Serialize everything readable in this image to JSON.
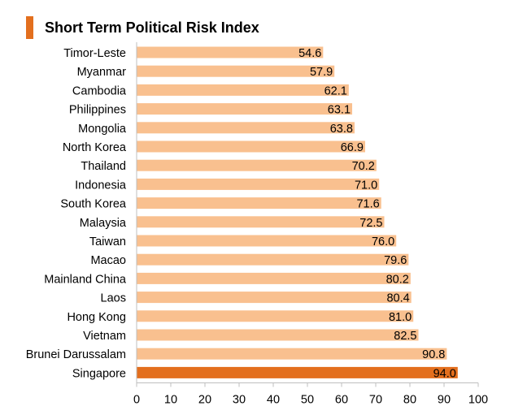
{
  "chart_data": {
    "type": "bar",
    "orientation": "horizontal",
    "title": "Short Term Political Risk Index",
    "categories": [
      "Timor-Leste",
      "Myanmar",
      "Cambodia",
      "Philippines",
      "Mongolia",
      "North Korea",
      "Thailand",
      "Indonesia",
      "South Korea",
      "Malaysia",
      "Taiwan",
      "Macao",
      "Mainland China",
      "Laos",
      "Hong Kong",
      "Vietnam",
      "Brunei Darussalam",
      "Singapore"
    ],
    "values": [
      54.6,
      57.9,
      62.1,
      63.1,
      63.8,
      66.9,
      70.2,
      71.0,
      71.6,
      72.5,
      76.0,
      79.6,
      80.2,
      80.4,
      81.0,
      82.5,
      90.8,
      94.0
    ],
    "value_labels": [
      "54.6",
      "57.9",
      "62.1",
      "63.1",
      "63.8",
      "66.9",
      "70.2",
      "71.0",
      "71.6",
      "72.5",
      "76.0",
      "79.6",
      "80.2",
      "80.4",
      "81.0",
      "82.5",
      "90.8",
      "94.0"
    ],
    "highlight_category": "Singapore",
    "xlim": [
      0,
      100
    ],
    "xticks": [
      0,
      10,
      20,
      30,
      40,
      50,
      60,
      70,
      80,
      90,
      100
    ],
    "xlabel": "",
    "ylabel": "",
    "grid": false,
    "legend": "none",
    "colors": {
      "bar": "#F9C08F",
      "highlight": "#E36F1E",
      "title_accent": "#E36F1E",
      "axis": "#bfbfbf"
    }
  }
}
